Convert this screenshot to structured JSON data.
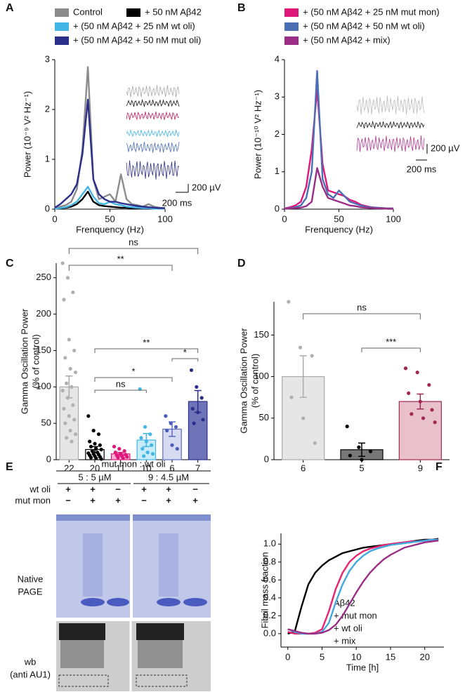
{
  "chart_data": [
    {
      "type": "line",
      "panel": "A",
      "xlabel": "Frenquency (Hz)",
      "ylabel": "Power (10⁻⁹ V² Hz⁻¹)",
      "x": [
        0,
        5,
        10,
        15,
        20,
        25,
        30,
        35,
        40,
        45,
        50,
        55,
        60,
        65,
        70,
        75,
        80,
        85,
        90,
        95,
        100
      ],
      "xlim": [
        0,
        100
      ],
      "xticks": [
        0,
        50,
        100
      ],
      "ylim": [
        0,
        3
      ],
      "yticks": [
        0,
        1,
        2,
        3
      ],
      "series": [
        {
          "name": "Control",
          "color": "#8c8c8c",
          "values": [
            0.02,
            0.05,
            0.08,
            0.15,
            0.4,
            1.2,
            2.85,
            0.6,
            0.2,
            0.25,
            0.3,
            0.15,
            0.7,
            0.2,
            0.1,
            0.08,
            0.05,
            0.1,
            0.05,
            0.03,
            0.02
          ]
        },
        {
          "name": "+ 50 nM Aβ42",
          "color": "#000000",
          "values": [
            0.01,
            0.02,
            0.03,
            0.05,
            0.1,
            0.2,
            0.35,
            0.15,
            0.08,
            0.06,
            0.05,
            0.04,
            0.03,
            0.03,
            0.02,
            0.02,
            0.02,
            0.01,
            0.01,
            0.01,
            0.01
          ]
        },
        {
          "name": "+ (50 nM Aβ42 + 25 nM wt oli)",
          "color": "#43b6e6",
          "values": [
            0.01,
            0.02,
            0.04,
            0.08,
            0.15,
            0.3,
            0.45,
            0.25,
            0.12,
            0.1,
            0.15,
            0.1,
            0.08,
            0.05,
            0.04,
            0.03,
            0.02,
            0.02,
            0.01,
            0.01,
            0.01
          ]
        },
        {
          "name": "+ (50 nM Aβ42 + 50 nM mut oli)",
          "color": "#2b2f8a",
          "values": [
            0.03,
            0.1,
            0.2,
            0.3,
            0.5,
            1.1,
            2.2,
            0.6,
            0.3,
            0.2,
            0.15,
            0.15,
            0.12,
            0.1,
            0.08,
            0.06,
            0.05,
            0.04,
            0.03,
            0.02,
            0.02
          ]
        }
      ],
      "scale_bar": [
        "200 µV",
        "200 ms"
      ]
    },
    {
      "type": "line",
      "panel": "B",
      "xlabel": "Frenquency (Hz)",
      "ylabel": "Power (10⁻¹⁰ V² Hz⁻¹)",
      "x": [
        0,
        5,
        10,
        15,
        20,
        25,
        30,
        35,
        40,
        45,
        50,
        55,
        60,
        65,
        70,
        75,
        80,
        85,
        90,
        95,
        100
      ],
      "xlim": [
        0,
        100
      ],
      "xticks": [
        0,
        50,
        100
      ],
      "ylim": [
        0,
        4
      ],
      "yticks": [
        0,
        1,
        2,
        3,
        4
      ],
      "series": [
        {
          "name": "+ (50 nM Aβ42 + 25 nM mut mon)",
          "color": "#e0177a",
          "values": [
            0.02,
            0.05,
            0.1,
            0.2,
            0.6,
            1.6,
            3.2,
            1.2,
            0.5,
            0.45,
            0.4,
            0.35,
            0.25,
            0.2,
            0.12,
            0.08,
            0.05,
            0.04,
            0.03,
            0.02,
            0.02
          ]
        },
        {
          "name": "+ (50 nM Aβ42 + 50 nM wt oli)",
          "color": "#4a6fb5",
          "values": [
            0.02,
            0.03,
            0.05,
            0.1,
            0.3,
            1.0,
            3.7,
            0.8,
            0.4,
            0.3,
            0.5,
            0.35,
            0.2,
            0.15,
            0.1,
            0.06,
            0.05,
            0.04,
            0.03,
            0.02,
            0.02
          ]
        },
        {
          "name": "+ (50 nM Aβ42 + mix)",
          "color": "#9b2d86",
          "values": [
            0.01,
            0.02,
            0.03,
            0.04,
            0.08,
            0.2,
            1.1,
            0.6,
            0.3,
            0.25,
            0.2,
            0.15,
            0.1,
            0.08,
            0.05,
            0.04,
            0.03,
            0.02,
            0.02,
            0.01,
            0.01
          ]
        }
      ],
      "scale_bar": [
        "200 µV",
        "200 ms"
      ]
    },
    {
      "type": "bar",
      "panel": "C",
      "ylabel": [
        "Gamma Oscillation Power",
        "(% of control)"
      ],
      "categories": [
        "22",
        "20",
        "11",
        "10",
        "6",
        "7"
      ],
      "values": [
        100,
        14,
        8,
        27,
        42,
        80
      ],
      "errors": [
        15,
        4,
        2,
        9,
        10,
        15
      ],
      "colors": [
        "#e6e6e6",
        "#ffffff",
        "#f7b6d2",
        "#c8ecf9",
        "#d7dbf2",
        "#6f73b8"
      ],
      "edge_colors": [
        "#aaaaaa",
        "#000000",
        "#e0177a",
        "#43b6e6",
        "#5a6bbf",
        "#2b2f8a"
      ],
      "point_colors": [
        "#b0b0b0",
        "#000000",
        "#e0177a",
        "#43b6e6",
        "#4a5db8",
        "#2b2f8a"
      ],
      "points": [
        [
          270,
          250,
          230,
          220,
          165,
          150,
          140,
          125,
          120,
          105,
          100,
          95,
          85,
          75,
          70,
          60,
          55,
          50,
          40,
          35,
          30,
          25
        ],
        [
          60,
          40,
          35,
          25,
          22,
          20,
          18,
          15,
          14,
          12,
          10,
          9,
          8,
          7,
          6,
          5,
          4,
          3,
          2,
          1
        ],
        [
          18,
          15,
          12,
          10,
          8,
          7,
          6,
          5,
          4,
          3,
          2
        ],
        [
          97,
          45,
          35,
          30,
          25,
          20,
          15,
          10,
          8,
          5
        ],
        [
          60,
          50,
          45,
          40,
          20,
          15
        ],
        [
          123,
          100,
          85,
          70,
          65,
          55,
          50
        ]
      ],
      "ylim": [
        0,
        270
      ],
      "yticks": [
        0,
        50,
        100,
        150,
        200,
        250
      ],
      "annotations": [
        "ns",
        "**",
        "**",
        "*",
        "*",
        "ns"
      ]
    },
    {
      "type": "bar",
      "panel": "D",
      "ylabel": [
        "Gamma Oscillation Power",
        "(% of control)"
      ],
      "categories": [
        "6",
        "5",
        "9"
      ],
      "values": [
        100,
        12,
        70
      ],
      "errors": [
        25,
        8,
        9
      ],
      "colors": [
        "#e6e6e6",
        "#777777",
        "#e8c1cc"
      ],
      "edge_colors": [
        "#aaaaaa",
        "#000000",
        "#a3284d"
      ],
      "point_colors": [
        "#b0b0b0",
        "#000000",
        "#a3284d"
      ],
      "points": [
        [
          190,
          135,
          125,
          75,
          50,
          20
        ],
        [
          40,
          15,
          10,
          5,
          0
        ],
        [
          110,
          105,
          90,
          80,
          70,
          60,
          55,
          50,
          45
        ]
      ],
      "ylim": [
        0,
        190
      ],
      "yticks": [
        0,
        50,
        100,
        150
      ],
      "annotations": [
        "ns",
        "***"
      ]
    },
    {
      "type": "line",
      "panel": "F",
      "xlabel": "Time [h]",
      "ylabel": "Fibril mass fraction",
      "x": [
        0,
        1,
        2,
        3,
        4,
        5,
        6,
        7,
        8,
        9,
        10,
        11,
        12,
        13,
        14,
        15,
        16,
        17,
        18,
        19,
        20,
        21,
        22
      ],
      "xlim": [
        -1,
        22.8
      ],
      "xticks": [
        0,
        5,
        10,
        15,
        20
      ],
      "ylim": [
        -0.15,
        1.12
      ],
      "yticks": [
        {
          "value": 0,
          "label": "0.0"
        },
        {
          "value": 0.2,
          "label": "0.2"
        },
        {
          "value": 0.4,
          "label": "0.4"
        },
        {
          "value": 0.6,
          "label": "0.6"
        },
        {
          "value": 0.8,
          "label": "0.8"
        },
        {
          "value": 1,
          "label": "1.0"
        }
      ],
      "legend": "lower right",
      "series": [
        {
          "name": "Aβ42",
          "color": "#000000",
          "values": [
            0,
            0.02,
            0.3,
            0.55,
            0.68,
            0.76,
            0.82,
            0.86,
            0.9,
            0.92,
            0.94,
            0.96,
            0.97,
            0.98,
            0.99,
            1.0,
            1.01,
            1.02,
            1.03,
            1.04,
            1.05,
            1.05,
            1.06
          ]
        },
        {
          "name": "+ mut mon",
          "color": "#e8246f",
          "values": [
            0.02,
            0,
            0,
            0,
            0.01,
            0.05,
            0.25,
            0.5,
            0.68,
            0.8,
            0.87,
            0.92,
            0.95,
            0.97,
            0.99,
            1.0,
            1.01,
            1.02,
            1.03,
            1.03,
            1.04,
            1.05,
            1.05
          ]
        },
        {
          "name": "+ wt oli",
          "color": "#43a8dc",
          "values": [
            0.05,
            0.02,
            0,
            0,
            0,
            0.02,
            0.12,
            0.35,
            0.55,
            0.7,
            0.8,
            0.87,
            0.92,
            0.95,
            0.97,
            0.99,
            1.0,
            1.01,
            1.02,
            1.03,
            1.04,
            1.05,
            1.05
          ]
        },
        {
          "name": "+ mix",
          "color": "#9b2d86",
          "values": [
            0.05,
            0.03,
            0.01,
            0,
            0,
            0.01,
            0.04,
            0.1,
            0.2,
            0.33,
            0.46,
            0.58,
            0.68,
            0.76,
            0.83,
            0.88,
            0.92,
            0.96,
            0.98,
            1.0,
            1.02,
            1.03,
            1.04
          ]
        }
      ]
    }
  ],
  "gel": {
    "panel": "E",
    "ratio_label": "mut mon : wt oli",
    "conditions": [
      "5 : 5 µM",
      "9 : 4.5 µM"
    ],
    "row_labels": [
      "wt oli",
      "mut mon"
    ],
    "signs": [
      [
        "+",
        "+",
        "−",
        "+",
        "+",
        "−"
      ],
      [
        "−",
        "+",
        "+",
        "−",
        "+",
        "+"
      ]
    ],
    "native_label": [
      "Native",
      "PAGE"
    ],
    "wb_label": [
      "wb",
      "(anti AU1)"
    ]
  }
}
